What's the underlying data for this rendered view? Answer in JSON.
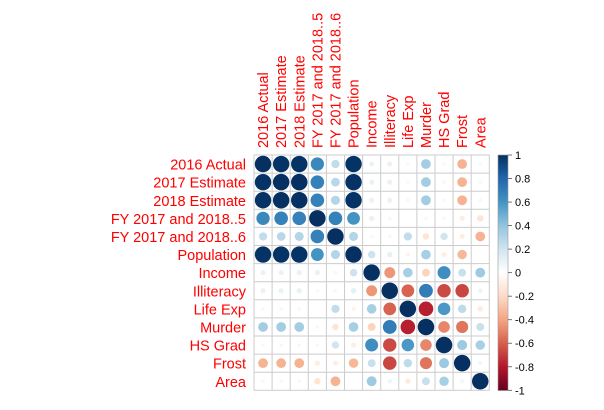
{
  "chart_data": {
    "type": "heatmap",
    "subtype": "correlation-circle",
    "variables": [
      "2016 Actual",
      "2017 Estimate",
      "2018 Estimate",
      "FY 2017 and 2018..5",
      "FY 2017 and 2018..6",
      "Population",
      "Income",
      "Illiteracy",
      "Life Exp",
      "Murder",
      "HS Grad",
      "Frost",
      "Area"
    ],
    "matrix": [
      [
        1.0,
        0.99,
        0.99,
        0.65,
        0.25,
        0.99,
        0.1,
        0.1,
        -0.05,
        0.35,
        -0.05,
        -0.35,
        0.05
      ],
      [
        0.99,
        1.0,
        1.0,
        0.68,
        0.28,
        0.99,
        0.1,
        0.1,
        -0.05,
        0.35,
        -0.05,
        -0.35,
        0.05
      ],
      [
        0.99,
        1.0,
        1.0,
        0.68,
        0.3,
        0.99,
        0.1,
        0.1,
        -0.05,
        0.35,
        -0.05,
        -0.35,
        0.05
      ],
      [
        0.65,
        0.68,
        0.68,
        1.0,
        0.68,
        0.6,
        0.1,
        0.05,
        0.0,
        0.05,
        0.05,
        -0.1,
        -0.15
      ],
      [
        0.25,
        0.28,
        0.3,
        0.68,
        1.0,
        0.3,
        0.05,
        0.05,
        0.25,
        -0.15,
        0.2,
        -0.1,
        -0.35
      ],
      [
        0.99,
        0.99,
        0.99,
        0.6,
        0.3,
        1.0,
        0.21,
        0.11,
        -0.07,
        0.34,
        -0.1,
        -0.33,
        0.02
      ],
      [
        0.1,
        0.1,
        0.1,
        0.1,
        0.05,
        0.21,
        1.0,
        -0.44,
        0.34,
        -0.23,
        0.62,
        0.23,
        0.36
      ],
      [
        0.1,
        0.1,
        0.1,
        0.05,
        0.05,
        0.11,
        -0.44,
        1.0,
        -0.59,
        0.7,
        -0.66,
        -0.67,
        0.08
      ],
      [
        -0.05,
        -0.05,
        -0.05,
        0.0,
        0.25,
        -0.07,
        0.34,
        -0.59,
        1.0,
        -0.78,
        0.58,
        0.26,
        -0.11
      ],
      [
        0.35,
        0.35,
        0.35,
        0.05,
        -0.15,
        0.34,
        -0.23,
        0.7,
        -0.78,
        1.0,
        -0.49,
        -0.54,
        0.23
      ],
      [
        -0.05,
        -0.05,
        -0.05,
        0.05,
        0.2,
        -0.1,
        0.62,
        -0.66,
        0.58,
        -0.49,
        1.0,
        0.37,
        0.33
      ],
      [
        -0.35,
        -0.35,
        -0.35,
        -0.1,
        -0.1,
        -0.33,
        0.23,
        -0.67,
        0.26,
        -0.54,
        0.37,
        1.0,
        0.06
      ],
      [
        0.05,
        0.05,
        0.05,
        -0.15,
        -0.35,
        0.02,
        0.36,
        0.08,
        -0.11,
        0.23,
        0.33,
        0.06,
        1.0
      ]
    ],
    "colorbar": {
      "min": -1,
      "max": 1,
      "tick_labels": [
        "-1",
        "-0.8",
        "-0.6",
        "-0.4",
        "-0.2",
        "0",
        "0.2",
        "0.4",
        "0.6",
        "0.8",
        "1"
      ]
    },
    "colors": {
      "labels": "#ff0000",
      "grid": "#cccccc",
      "scale": [
        "#67001f",
        "#b2182b",
        "#d6604d",
        "#f4a582",
        "#fddbc7",
        "#ffffff",
        "#d1e5f0",
        "#92c5de",
        "#4393c3",
        "#2166ac",
        "#053061"
      ]
    },
    "grid": true,
    "legend": "right"
  }
}
